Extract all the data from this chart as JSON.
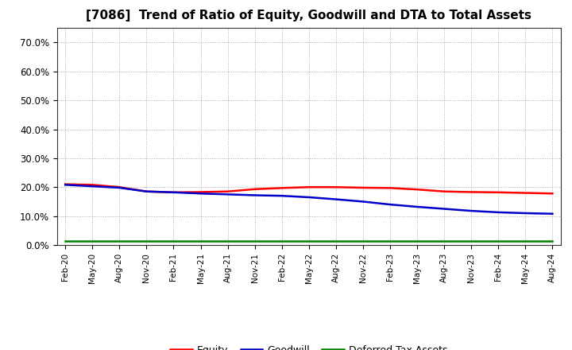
{
  "title": "[7086]  Trend of Ratio of Equity, Goodwill and DTA to Total Assets",
  "title_fontsize": 11,
  "ylim": [
    0.0,
    0.75
  ],
  "yticks": [
    0.0,
    0.1,
    0.2,
    0.3,
    0.4,
    0.5,
    0.6,
    0.7
  ],
  "ytick_labels": [
    "0.0%",
    "10.0%",
    "20.0%",
    "30.0%",
    "40.0%",
    "50.0%",
    "60.0%",
    "70.0%"
  ],
  "xtick_labels": [
    "Feb-20",
    "May-20",
    "Aug-20",
    "Nov-20",
    "Feb-21",
    "May-21",
    "Aug-21",
    "Nov-21",
    "Feb-22",
    "May-22",
    "Aug-22",
    "Nov-22",
    "Feb-23",
    "May-23",
    "Aug-23",
    "Nov-23",
    "Feb-24",
    "May-24",
    "Aug-24"
  ],
  "background_color": "#ffffff",
  "plot_bg_color": "#ffffff",
  "grid_color": "#999999",
  "equity_color": "#ff0000",
  "goodwill_color": "#0000cc",
  "dta_color": "#008000",
  "equity_values": [
    0.21,
    0.208,
    0.2,
    0.185,
    0.182,
    0.183,
    0.185,
    0.193,
    0.197,
    0.2,
    0.2,
    0.198,
    0.197,
    0.192,
    0.185,
    0.183,
    0.182,
    0.18,
    0.178
  ],
  "goodwill_values": [
    0.208,
    0.203,
    0.198,
    0.185,
    0.182,
    0.178,
    0.175,
    0.172,
    0.17,
    0.165,
    0.158,
    0.15,
    0.14,
    0.132,
    0.125,
    0.118,
    0.113,
    0.11,
    0.108
  ],
  "dta_values": [
    0.013,
    0.013,
    0.013,
    0.013,
    0.013,
    0.013,
    0.013,
    0.013,
    0.013,
    0.013,
    0.013,
    0.013,
    0.013,
    0.013,
    0.013,
    0.013,
    0.013,
    0.013,
    0.013
  ],
  "legend_labels": [
    "Equity",
    "Goodwill",
    "Deferred Tax Assets"
  ],
  "line_width": 1.8
}
